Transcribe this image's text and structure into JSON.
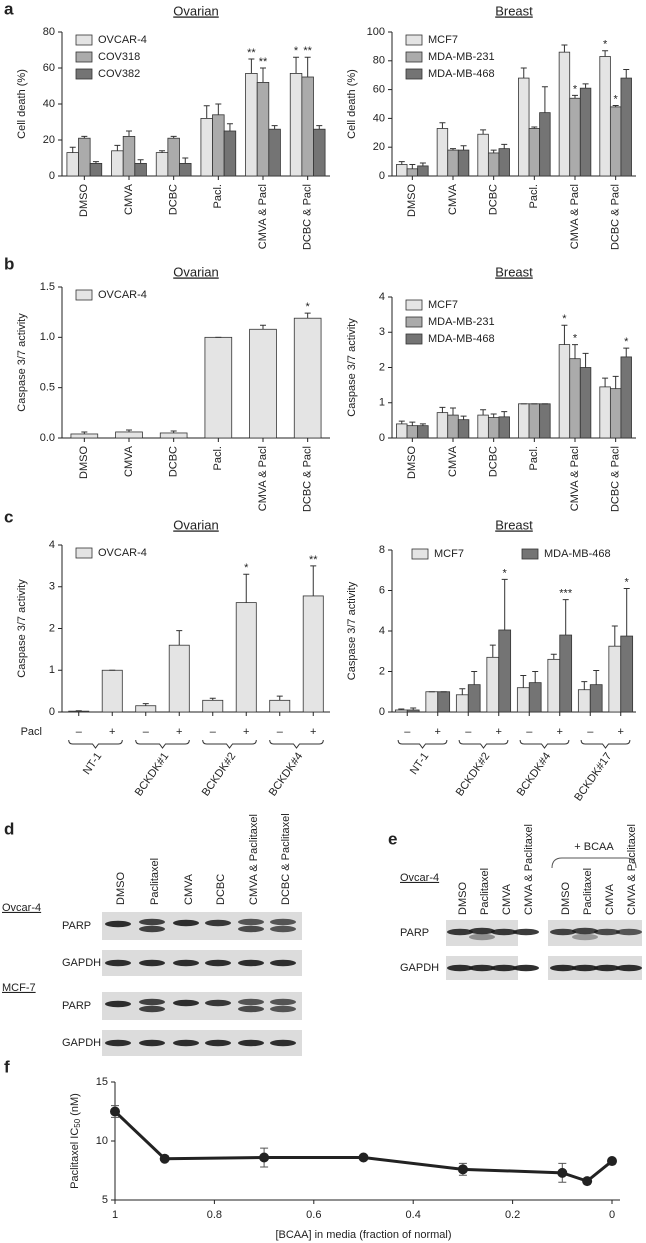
{
  "panel_labels": [
    "a",
    "b",
    "c",
    "d",
    "e",
    "f"
  ],
  "chart_data": [
    {
      "type": "bar",
      "title": "Ovarian",
      "y_label": "Cell death (%)",
      "legend": "upper left",
      "categories": [
        "DMSO",
        "CMVA",
        "DCBC",
        "Pacl.",
        "CMVA & Pacl",
        "DCBC & Pacl"
      ],
      "series": [
        {
          "name": "OVCAR-4",
          "color": "#e4e4e4",
          "values": [
            13,
            14,
            13,
            32,
            57,
            57
          ],
          "errors": [
            3,
            3,
            1,
            7,
            8,
            9
          ],
          "significance": [
            null,
            null,
            null,
            null,
            "**",
            "*"
          ]
        },
        {
          "name": "COV318",
          "color": "#ababab",
          "values": [
            21,
            22,
            21,
            34,
            52,
            55
          ],
          "errors": [
            1,
            3,
            1,
            6,
            8,
            11
          ],
          "significance": [
            null,
            null,
            null,
            null,
            "**",
            "**"
          ]
        },
        {
          "name": "COV382",
          "color": "#747474",
          "values": [
            7,
            7,
            7,
            25,
            26,
            26
          ],
          "errors": [
            1,
            2,
            3,
            4,
            2,
            2
          ],
          "significance": [
            null,
            null,
            null,
            null,
            null,
            null
          ]
        }
      ],
      "ylim": [
        0,
        80
      ],
      "yticks": [
        0,
        20,
        40,
        60,
        80
      ]
    },
    {
      "type": "bar",
      "title": "Breast",
      "y_label": "Cell death (%)",
      "legend": "upper left",
      "categories": [
        "DMSO",
        "CMVA",
        "DCBC",
        "Pacl.",
        "CMVA & Pacl",
        "DCBC & Pacl"
      ],
      "series": [
        {
          "name": "MCF7",
          "color": "#e4e4e4",
          "values": [
            8,
            33,
            29,
            68,
            86,
            83
          ],
          "errors": [
            2,
            4,
            3,
            7,
            5,
            4
          ],
          "significance": [
            null,
            null,
            null,
            null,
            null,
            "*"
          ]
        },
        {
          "name": "MDA-MB-231",
          "color": "#ababab",
          "values": [
            5,
            18,
            16,
            33,
            54,
            48
          ],
          "errors": [
            3,
            1,
            2,
            1,
            2,
            1
          ],
          "significance": [
            null,
            null,
            null,
            null,
            "*",
            "*"
          ]
        },
        {
          "name": "MDA-MB-468",
          "color": "#747474",
          "values": [
            7,
            18,
            19,
            44,
            61,
            68
          ],
          "errors": [
            2,
            3,
            3,
            18,
            3,
            6
          ],
          "significance": [
            null,
            null,
            null,
            null,
            null,
            null
          ]
        }
      ],
      "ylim": [
        0,
        100
      ],
      "yticks": [
        0,
        20,
        40,
        60,
        80,
        100
      ]
    },
    {
      "type": "bar",
      "title": "Ovarian",
      "y_label": "Caspase 3/7 activity",
      "legend": "upper left",
      "categories": [
        "DMSO",
        "CMVA",
        "DCBC",
        "Pacl.",
        "CMVA & Pacl",
        "DCBC & Pacl"
      ],
      "series": [
        {
          "name": "OVCAR-4",
          "color": "#e4e4e4",
          "values": [
            0.04,
            0.06,
            0.05,
            1.0,
            1.08,
            1.19
          ],
          "errors": [
            0.02,
            0.02,
            0.02,
            0,
            0.04,
            0.05
          ],
          "significance": [
            null,
            null,
            null,
            null,
            null,
            "*"
          ]
        }
      ],
      "ylim": [
        0,
        1.5
      ],
      "yticks": [
        {
          "value": 0,
          "label": "0.0"
        },
        0.5,
        {
          "value": 1,
          "label": "1.0"
        },
        1.5
      ]
    },
    {
      "type": "bar",
      "title": "Breast",
      "y_label": "Caspase 3/7 activity",
      "legend": "upper left",
      "categories": [
        "DMSO",
        "CMVA",
        "DCBC",
        "Pacl.",
        "CMVA & Pacl",
        "DCBC & Pacl"
      ],
      "series": [
        {
          "name": "MCF7",
          "color": "#e4e4e4",
          "values": [
            0.4,
            0.72,
            0.65,
            0.97,
            2.65,
            1.45
          ],
          "errors": [
            0.08,
            0.15,
            0.15,
            0,
            0.55,
            0.25
          ],
          "significance": [
            null,
            null,
            null,
            null,
            "*",
            null
          ]
        },
        {
          "name": "MDA-MB-231",
          "color": "#ababab",
          "values": [
            0.35,
            0.65,
            0.58,
            0.97,
            2.25,
            1.4
          ],
          "errors": [
            0.1,
            0.2,
            0.1,
            0,
            0.4,
            0.35
          ],
          "significance": [
            null,
            null,
            null,
            null,
            "*",
            null
          ]
        },
        {
          "name": "MDA-MB-468",
          "color": "#747474",
          "values": [
            0.35,
            0.52,
            0.6,
            0.97,
            2.0,
            2.3
          ],
          "errors": [
            0.05,
            0.1,
            0.15,
            0,
            0.4,
            0.25
          ],
          "significance": [
            null,
            null,
            null,
            null,
            null,
            "*"
          ]
        }
      ],
      "ylim": [
        0,
        4
      ],
      "yticks": [
        0,
        1,
        2,
        3,
        4
      ]
    },
    {
      "type": "bar",
      "title": "Ovarian",
      "y_label": "Caspase 3/7 activity",
      "legend": "upper left",
      "x_row_label": "Pacl",
      "categories": [
        "–",
        "+",
        "–",
        "+",
        "–",
        "+",
        "–",
        "+"
      ],
      "groups": [
        "NT-1",
        "BCKDK#1",
        "BCKDK#2",
        "BCKDK#4"
      ],
      "series": [
        {
          "name": "OVCAR-4",
          "color": "#e4e4e4",
          "values": [
            0.02,
            1.0,
            0.15,
            1.6,
            0.28,
            2.62,
            0.28,
            2.78
          ],
          "errors": [
            0.01,
            0,
            0.05,
            0.35,
            0.05,
            0.68,
            0.1,
            0.72
          ],
          "significance": [
            null,
            null,
            null,
            null,
            null,
            "*",
            null,
            "**"
          ]
        }
      ],
      "ylim": [
        0,
        4
      ],
      "yticks": [
        0,
        1,
        2,
        3,
        4
      ]
    },
    {
      "type": "bar",
      "title": "Breast",
      "y_label": "Caspase 3/7 activity",
      "legend": "top",
      "categories": [
        "–",
        "+",
        "–",
        "+",
        "–",
        "+",
        "–",
        "+"
      ],
      "groups": [
        "NT-1",
        "BCKDK#2",
        "BCKDK#4",
        "BCKDK#17"
      ],
      "series": [
        {
          "name": "MCF7",
          "color": "#e4e4e4",
          "values": [
            0.1,
            1.0,
            0.85,
            2.7,
            1.2,
            2.6,
            1.1,
            3.25
          ],
          "errors": [
            0.05,
            0,
            0.3,
            0.6,
            0.6,
            0.25,
            0.4,
            1.0
          ],
          "significance": [
            null,
            null,
            null,
            null,
            null,
            null,
            null,
            null
          ]
        },
        {
          "name": "MDA-MB-468",
          "color": "#747474",
          "values": [
            0.1,
            1.0,
            1.35,
            4.05,
            1.45,
            3.8,
            1.35,
            3.75
          ],
          "errors": [
            0.1,
            0,
            0.65,
            2.5,
            0.55,
            1.75,
            0.7,
            2.35
          ],
          "significance": [
            null,
            null,
            null,
            "*",
            null,
            "***",
            null,
            "*"
          ]
        }
      ],
      "ylim": [
        0,
        8
      ],
      "yticks": [
        0,
        2,
        4,
        6,
        8
      ]
    },
    {
      "type": "line",
      "y_label": "Paclitaxel IC",
      "y_label_sub": "50",
      "y_label_unit": "(nM)",
      "x_label": "[BCAA] in media (fraction of normal)",
      "x": [
        1,
        0.9,
        0.7,
        0.5,
        0.3,
        0.1,
        0.05,
        0
      ],
      "series": [
        {
          "color": "#222222",
          "values": [
            12.5,
            8.5,
            8.6,
            8.6,
            7.6,
            7.3,
            6.6,
            8.3
          ],
          "errors": [
            0.5,
            0.1,
            0.8,
            0.2,
            0.5,
            0.8,
            0.1,
            0.1
          ]
        }
      ],
      "xlim": [
        1,
        0
      ],
      "xticks": [
        1,
        0.8,
        0.6,
        0.4,
        0.2,
        0
      ],
      "ylim": [
        5,
        15
      ],
      "yticks": [
        5,
        10,
        15
      ]
    }
  ],
  "blot_d": {
    "lanes": [
      "DMSO",
      "Paclitaxel",
      "CMVA",
      "DCBC",
      "CMVA & Paclitaxel",
      "DCBC & Paclitaxel"
    ],
    "rows": [
      {
        "cell_line": "Ovcar-4",
        "proteins": [
          "PARP",
          "GAPDH"
        ]
      },
      {
        "cell_line": "MCF-7",
        "proteins": [
          "PARP",
          "GAPDH"
        ]
      }
    ]
  },
  "blot_e": {
    "cell_line": "Ovcar-4",
    "treatment": "+ BCAA",
    "lanes": [
      "DMSO",
      "Paclitaxel",
      "CMVA",
      "CMVA & Paclitaxel",
      "DMSO",
      "Paclitaxel",
      "CMVA",
      "CMVA & Paclitaxel"
    ],
    "proteins": [
      "PARP",
      "GAPDH"
    ]
  }
}
